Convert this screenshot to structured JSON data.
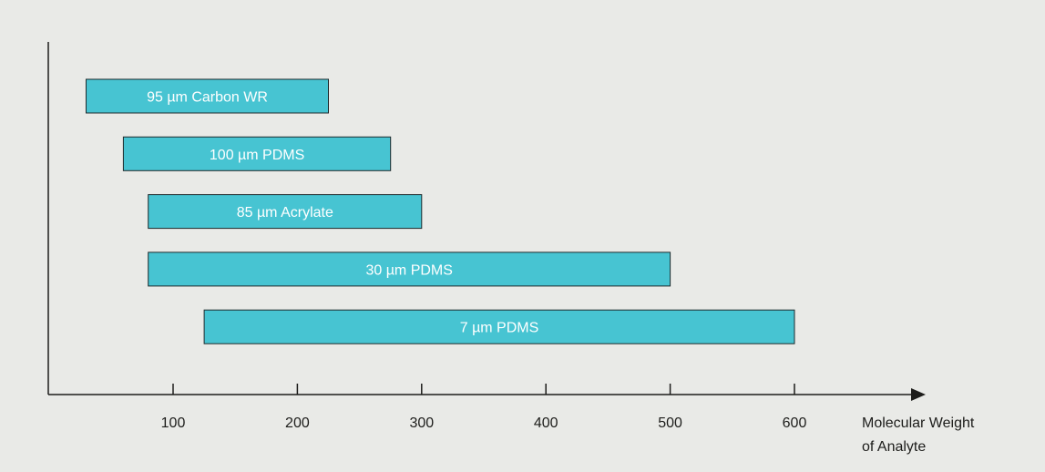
{
  "chart_data": {
    "type": "bar",
    "orientation": "horizontal-range",
    "title": "",
    "xlabel_lines": [
      "Molecular Weight",
      "of Analyte"
    ],
    "ylabel": "",
    "xlim": [
      0,
      600
    ],
    "x_ticks": [
      100,
      200,
      300,
      400,
      500,
      600
    ],
    "x_tick_labels": [
      "100",
      "200",
      "300",
      "400",
      "500",
      "600"
    ],
    "grid": false,
    "legend": "none",
    "bar_color": "#47c4d2",
    "bar_outline": "#1f2a2c",
    "axis_color": "#1d1d1b",
    "background": "#e9eae7",
    "series": [
      {
        "name": "95 µm Carbon WR",
        "start": 30,
        "end": 225
      },
      {
        "name": "100 µm PDMS",
        "start": 60,
        "end": 275
      },
      {
        "name": "85 µm Acrylate",
        "start": 80,
        "end": 300
      },
      {
        "name": "30 µm PDMS",
        "start": 80,
        "end": 500
      },
      {
        "name": "7 µm PDMS",
        "start": 125,
        "end": 600
      }
    ]
  }
}
